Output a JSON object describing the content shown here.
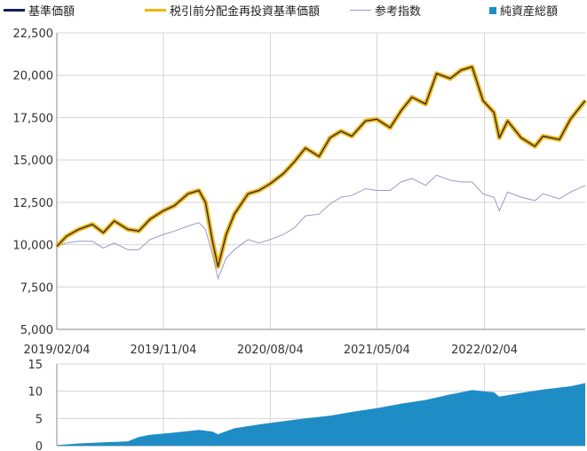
{
  "legend": {
    "nav": "基準価額",
    "reinvested": "税引前分配金再投資基準価額",
    "benchmark": "参考指数",
    "assets": "純資産総額"
  },
  "colors": {
    "nav": "#0b1f5c",
    "reinvested": "#f4b400",
    "benchmark": "#9b97c8",
    "assets": "#1e8dc6",
    "grid": "#d4d4d4",
    "axis": "#888888"
  },
  "chart_data": [
    {
      "type": "line",
      "x_ticks": [
        "2019/02/04",
        "2019/11/04",
        "2020/08/04",
        "2021/05/04",
        "2022/02/04"
      ],
      "x_range": [
        "2019/02/04",
        "2022/10/20"
      ],
      "y_ticks": [
        "5,000",
        "7,500",
        "10,000",
        "12,500",
        "15,000",
        "17,500",
        "20,000",
        "22,500"
      ],
      "ylim": [
        5000,
        22500
      ],
      "series": [
        {
          "name": "基準価額",
          "x": [
            "2019/02/04",
            "2019/03/01",
            "2019/04/01",
            "2019/05/06",
            "2019/06/03",
            "2019/07/01",
            "2019/08/05",
            "2019/09/02",
            "2019/10/01",
            "2019/11/04",
            "2019/12/02",
            "2020/01/06",
            "2020/02/03",
            "2020/02/20",
            "2020/03/09",
            "2020/03/23",
            "2020/04/13",
            "2020/05/04",
            "2020/06/08",
            "2020/07/06",
            "2020/08/04",
            "2020/09/07",
            "2020/10/05",
            "2020/11/02",
            "2020/12/07",
            "2021/01/04",
            "2021/02/01",
            "2021/03/01",
            "2021/04/05",
            "2021/05/04",
            "2021/06/07",
            "2021/07/05",
            "2021/08/02",
            "2021/09/06",
            "2021/10/04",
            "2021/11/08",
            "2021/12/06",
            "2022/01/03",
            "2022/01/31",
            "2022/02/28",
            "2022/03/14",
            "2022/04/04",
            "2022/05/09",
            "2022/06/13",
            "2022/07/04",
            "2022/08/15",
            "2022/09/12",
            "2022/10/20"
          ],
          "values": [
            9900,
            10500,
            10900,
            11200,
            10700,
            11400,
            10900,
            10800,
            11500,
            12000,
            12300,
            13000,
            13200,
            12500,
            10200,
            8700,
            10600,
            11800,
            13000,
            13200,
            13600,
            14200,
            14900,
            15700,
            15200,
            16300,
            16700,
            16400,
            17300,
            17400,
            16900,
            17900,
            18700,
            18300,
            20100,
            19800,
            20300,
            20500,
            18500,
            17800,
            16300,
            17300,
            16300,
            15800,
            16400,
            16200,
            17400,
            18500
          ]
        },
        {
          "name": "税引前分配金再投資基準価額",
          "x": [
            "2019/02/04",
            "2019/03/01",
            "2019/04/01",
            "2019/05/06",
            "2019/06/03",
            "2019/07/01",
            "2019/08/05",
            "2019/09/02",
            "2019/10/01",
            "2019/11/04",
            "2019/12/02",
            "2020/01/06",
            "2020/02/03",
            "2020/02/20",
            "2020/03/09",
            "2020/03/23",
            "2020/04/13",
            "2020/05/04",
            "2020/06/08",
            "2020/07/06",
            "2020/08/04",
            "2020/09/07",
            "2020/10/05",
            "2020/11/02",
            "2020/12/07",
            "2021/01/04",
            "2021/02/01",
            "2021/03/01",
            "2021/04/05",
            "2021/05/04",
            "2021/06/07",
            "2021/07/05",
            "2021/08/02",
            "2021/09/06",
            "2021/10/04",
            "2021/11/08",
            "2021/12/06",
            "2022/01/03",
            "2022/01/31",
            "2022/02/28",
            "2022/03/14",
            "2022/04/04",
            "2022/05/09",
            "2022/06/13",
            "2022/07/04",
            "2022/08/15",
            "2022/09/12",
            "2022/10/20"
          ],
          "values": [
            9900,
            10500,
            10900,
            11200,
            10700,
            11400,
            10900,
            10800,
            11500,
            12000,
            12300,
            13000,
            13200,
            12500,
            10200,
            8700,
            10600,
            11800,
            13000,
            13200,
            13600,
            14200,
            14900,
            15700,
            15200,
            16300,
            16700,
            16400,
            17300,
            17400,
            16900,
            17900,
            18700,
            18300,
            20100,
            19800,
            20300,
            20500,
            18500,
            17800,
            16300,
            17300,
            16300,
            15800,
            16400,
            16200,
            17400,
            18500
          ]
        },
        {
          "name": "参考指数",
          "x": [
            "2019/02/04",
            "2019/03/01",
            "2019/04/01",
            "2019/05/06",
            "2019/06/03",
            "2019/07/01",
            "2019/08/05",
            "2019/09/02",
            "2019/10/01",
            "2019/11/04",
            "2019/12/02",
            "2020/01/06",
            "2020/02/03",
            "2020/02/20",
            "2020/03/09",
            "2020/03/23",
            "2020/04/13",
            "2020/05/04",
            "2020/06/08",
            "2020/07/06",
            "2020/08/04",
            "2020/09/07",
            "2020/10/05",
            "2020/11/02",
            "2020/12/07",
            "2021/01/04",
            "2021/02/01",
            "2021/03/01",
            "2021/04/05",
            "2021/05/04",
            "2021/06/07",
            "2021/07/05",
            "2021/08/02",
            "2021/09/06",
            "2021/10/04",
            "2021/11/08",
            "2021/12/06",
            "2022/01/03",
            "2022/01/31",
            "2022/02/28",
            "2022/03/14",
            "2022/04/04",
            "2022/05/09",
            "2022/06/13",
            "2022/07/04",
            "2022/08/15",
            "2022/09/12",
            "2022/10/20"
          ],
          "values": [
            9900,
            10100,
            10200,
            10200,
            9800,
            10100,
            9700,
            9700,
            10300,
            10600,
            10800,
            11100,
            11300,
            10900,
            9400,
            8000,
            9200,
            9700,
            10300,
            10100,
            10300,
            10600,
            11000,
            11700,
            11800,
            12400,
            12800,
            12900,
            13300,
            13200,
            13200,
            13700,
            13900,
            13500,
            14100,
            13800,
            13700,
            13700,
            13000,
            12800,
            12000,
            13100,
            12800,
            12600,
            13000,
            12700,
            13100,
            13500
          ]
        }
      ]
    },
    {
      "type": "area",
      "x_range": [
        "2019/02/04",
        "2022/10/20"
      ],
      "y_ticks": [
        "0",
        "5",
        "10",
        "15"
      ],
      "ylim": [
        0,
        15
      ],
      "series": [
        {
          "name": "純資産総額",
          "x": [
            "2019/02/04",
            "2019/04/01",
            "2019/06/03",
            "2019/08/05",
            "2019/09/02",
            "2019/10/01",
            "2019/12/02",
            "2020/02/03",
            "2020/03/09",
            "2020/03/23",
            "2020/05/04",
            "2020/07/06",
            "2020/09/07",
            "2020/11/02",
            "2021/01/04",
            "2021/03/01",
            "2021/05/04",
            "2021/07/05",
            "2021/09/06",
            "2021/11/08",
            "2022/01/03",
            "2022/02/28",
            "2022/03/14",
            "2022/05/09",
            "2022/07/04",
            "2022/09/12",
            "2022/10/20"
          ],
          "values": [
            0.1,
            0.4,
            0.6,
            0.8,
            1.6,
            2.0,
            2.4,
            2.9,
            2.6,
            2.1,
            3.2,
            3.9,
            4.5,
            5.0,
            5.5,
            6.2,
            6.9,
            7.7,
            8.4,
            9.4,
            10.2,
            9.8,
            9.0,
            9.7,
            10.3,
            10.9,
            11.5
          ]
        }
      ]
    }
  ]
}
